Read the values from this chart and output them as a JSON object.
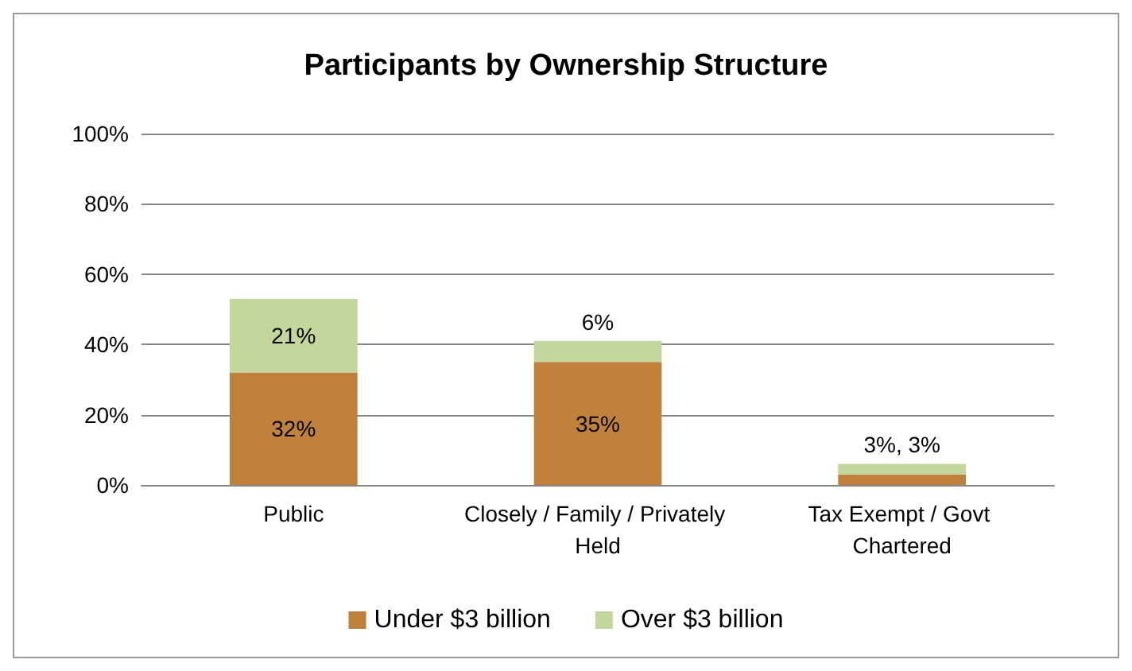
{
  "chart_data": {
    "type": "bar",
    "title": "Participants by Ownership Structure",
    "categories": [
      "Public",
      "Closely / Family / Privately Held",
      "Tax Exempt / Govt Chartered"
    ],
    "stacked": true,
    "series": [
      {
        "name": "Under $3 billion",
        "color": "#c0813c",
        "values": [
          32,
          35,
          3
        ],
        "value_labels": [
          "32%",
          "35%",
          null
        ]
      },
      {
        "name": "Over $3 billion",
        "color": "#c3d69b",
        "values": [
          21,
          6,
          3
        ],
        "value_labels": [
          "21%",
          "6%",
          "3%, 3%"
        ]
      }
    ],
    "ylim": [
      0,
      100
    ],
    "yticks": [
      {
        "value": 0,
        "label": "0%"
      },
      {
        "value": 20,
        "label": "20%"
      },
      {
        "value": 40,
        "label": "40%"
      },
      {
        "value": 60,
        "label": "60%"
      },
      {
        "value": 80,
        "label": "80%"
      },
      {
        "value": 100,
        "label": "100%"
      }
    ],
    "grid": "y",
    "legend": "bottom"
  }
}
